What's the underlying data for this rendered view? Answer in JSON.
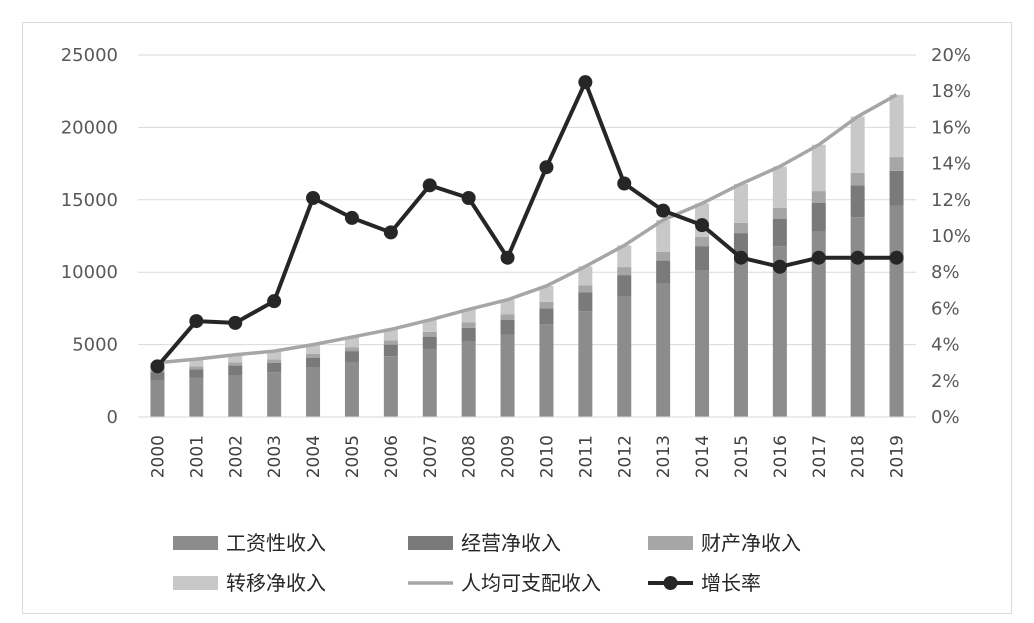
{
  "chart_data": {
    "type": "bar",
    "title": "",
    "categories": [
      "2000",
      "2001",
      "2002",
      "2003",
      "2004",
      "2005",
      "2006",
      "2007",
      "2008",
      "2009",
      "2010",
      "2011",
      "2012",
      "2013",
      "2014",
      "2015",
      "2016",
      "2017",
      "2018",
      "2019"
    ],
    "stacked": true,
    "series": [
      {
        "name": "工资性收入",
        "type": "bar",
        "axis": "left",
        "color": "#8c8c8c",
        "values": [
          2500,
          2700,
          2900,
          3100,
          3400,
          3800,
          4200,
          4700,
          5200,
          5700,
          6400,
          7300,
          8300,
          9200,
          10100,
          10900,
          11800,
          12800,
          13800,
          14600
        ]
      },
      {
        "name": "经营净收入",
        "type": "bar",
        "axis": "left",
        "color": "#7a7a7a",
        "values": [
          600,
          600,
          650,
          650,
          700,
          750,
          800,
          850,
          950,
          1000,
          1100,
          1300,
          1500,
          1600,
          1700,
          1800,
          1900,
          2000,
          2200,
          2400
        ]
      },
      {
        "name": "财产净收入",
        "type": "bar",
        "axis": "left",
        "color": "#a6a6a6",
        "values": [
          200,
          200,
          220,
          230,
          250,
          270,
          300,
          330,
          380,
          400,
          450,
          500,
          550,
          600,
          650,
          700,
          750,
          800,
          850,
          950
        ]
      },
      {
        "name": "转移净收入",
        "type": "bar",
        "axis": "left",
        "color": "#c8c8c8",
        "values": [
          450,
          500,
          530,
          570,
          650,
          700,
          750,
          820,
          900,
          1000,
          1100,
          1300,
          1500,
          2200,
          2300,
          2700,
          2850,
          3200,
          3900,
          4300
        ]
      },
      {
        "name": "人均可支配收入",
        "type": "line",
        "axis": "left",
        "color": "#a6a6a6",
        "values": [
          3750,
          4000,
          4300,
          4550,
          5000,
          5520,
          6050,
          6700,
          7430,
          8100,
          9050,
          10400,
          11850,
          13600,
          14750,
          16100,
          17300,
          18800,
          20750,
          22250
        ]
      },
      {
        "name": "增长率",
        "type": "line",
        "axis": "right",
        "color": "#262626",
        "marker": "circle",
        "values": [
          2.8,
          5.3,
          5.2,
          6.4,
          12.1,
          11.0,
          10.2,
          12.8,
          12.1,
          8.8,
          13.8,
          18.5,
          12.9,
          11.4,
          10.6,
          8.8,
          8.3,
          8.8,
          8.8,
          8.8
        ]
      }
    ],
    "y_left": {
      "min": 0,
      "max": 25000,
      "ticks": [
        "0",
        "5000",
        "10000",
        "15000",
        "20000",
        "25000"
      ]
    },
    "y_right": {
      "min": 0,
      "max": 20,
      "ticks": [
        "0%",
        "2%",
        "4%",
        "6%",
        "8%",
        "10%",
        "12%",
        "14%",
        "16%",
        "18%",
        "20%"
      ]
    },
    "grid": true,
    "legend_position": "bottom"
  }
}
